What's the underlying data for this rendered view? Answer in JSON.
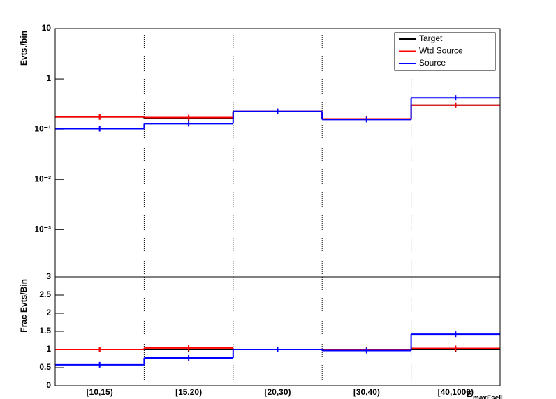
{
  "chart_data": [
    {
      "type": "step",
      "y_label": "Evts./bin",
      "log_y": true,
      "ylim": [
        0.000115,
        10
      ],
      "yticks": [
        {
          "value": 0.001,
          "label": "10⁻³"
        },
        {
          "value": 0.01,
          "label": "10⁻²"
        },
        {
          "value": 0.1,
          "label": "10⁻¹"
        },
        1,
        10
      ],
      "xgrid": true,
      "legend": "top-right",
      "series": [
        {
          "name": "Target",
          "color": "#000000",
          "values": [
            0.175,
            0.163,
            0.225,
            0.16,
            0.3
          ]
        },
        {
          "name": "Wtd Source",
          "color": "#ff0000",
          "values": [
            0.175,
            0.17,
            0.225,
            0.16,
            0.3
          ]
        },
        {
          "name": "Source",
          "color": "#0000ff",
          "values": [
            0.102,
            0.128,
            0.225,
            0.155,
            0.42
          ]
        }
      ]
    },
    {
      "type": "step",
      "y_label": "Frac Evts/Bin",
      "x_label": "E",
      "x_label_sub": "maxFsell",
      "log_y": false,
      "ylim": [
        0,
        3
      ],
      "yticks": [
        0,
        0.5,
        1,
        1.5,
        2,
        2.5,
        3
      ],
      "xgrid": true,
      "categories": [
        "[10,15)",
        "[15,20)",
        "[20,30)",
        "[30,40)",
        "[40,1000)"
      ],
      "series": [
        {
          "name": "Target",
          "color": "#000000",
          "values": [
            1,
            1,
            1,
            1,
            1
          ]
        },
        {
          "name": "Wtd Source",
          "color": "#ff0000",
          "values": [
            1.0,
            1.04,
            1.0,
            1.0,
            1.03
          ]
        },
        {
          "name": "Source",
          "color": "#0000ff",
          "values": [
            0.58,
            0.77,
            1.0,
            0.97,
            1.42
          ]
        }
      ]
    }
  ]
}
